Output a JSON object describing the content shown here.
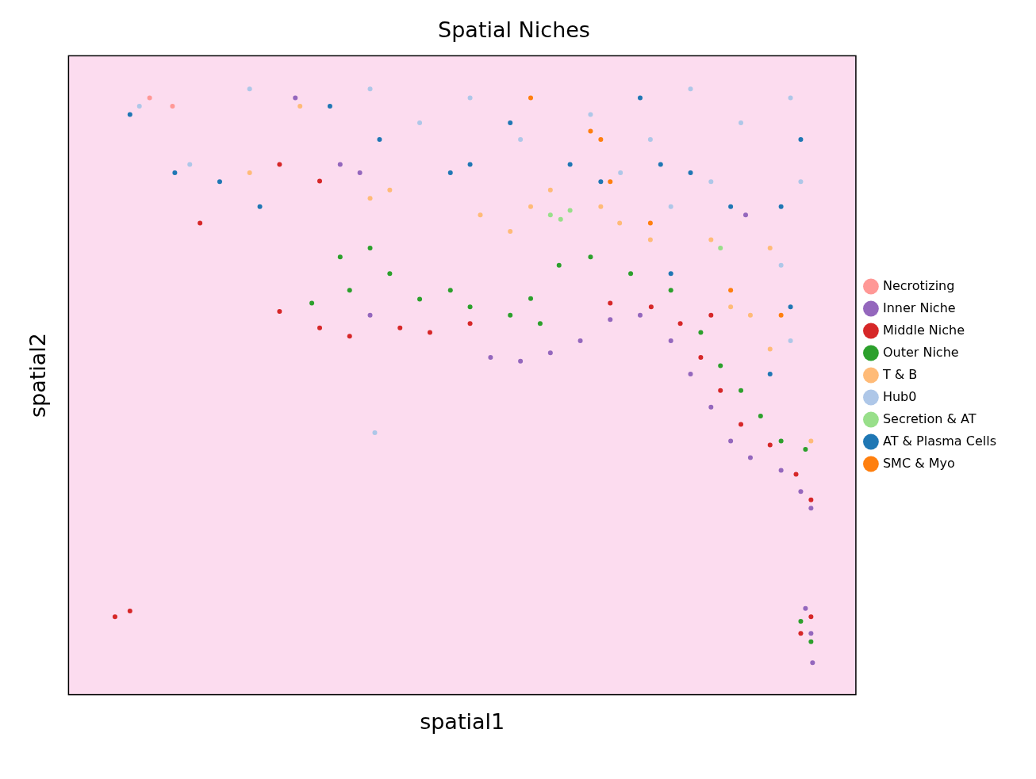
{
  "chart_data": {
    "type": "scatter",
    "title": "Spatial Niches",
    "x_label": "spatial1",
    "y_label": "spatial2",
    "xlim": [
      0,
      100
    ],
    "ylim": [
      0,
      100
    ],
    "xticks": [],
    "yticks": [],
    "tick_labels": false,
    "grid": false,
    "legend": "right",
    "marker": "circle",
    "series": [
      {
        "name": "Necrotizing",
        "color": "#ff9896",
        "values": [
          [
            10.3,
            93.4
          ],
          [
            13.2,
            92.1
          ]
        ]
      },
      {
        "name": "Inner Niche",
        "color": "#9467bd",
        "values": [
          [
            53.6,
            52.8
          ],
          [
            57.4,
            52.2
          ],
          [
            61.2,
            53.5
          ],
          [
            65.0,
            55.4
          ],
          [
            68.8,
            58.7
          ],
          [
            72.6,
            59.4
          ],
          [
            76.5,
            55.4
          ],
          [
            79.0,
            50.2
          ],
          [
            81.6,
            45.0
          ],
          [
            84.1,
            39.7
          ],
          [
            86.6,
            37.1
          ],
          [
            90.5,
            35.1
          ],
          [
            93.0,
            31.8
          ],
          [
            94.3,
            29.2
          ],
          [
            28.8,
            93.4
          ],
          [
            34.5,
            83.0
          ],
          [
            37.0,
            81.7
          ],
          [
            86.0,
            75.1
          ],
          [
            38.3,
            59.4
          ],
          [
            93.6,
            13.5
          ],
          [
            94.3,
            9.6
          ],
          [
            94.5,
            5.0
          ]
        ]
      },
      {
        "name": "Middle Niche",
        "color": "#d62728",
        "values": [
          [
            26.8,
            60.0
          ],
          [
            31.9,
            57.4
          ],
          [
            35.7,
            56.1
          ],
          [
            42.1,
            57.4
          ],
          [
            45.9,
            56.7
          ],
          [
            51.0,
            58.1
          ],
          [
            68.8,
            61.3
          ],
          [
            74.0,
            60.7
          ],
          [
            77.7,
            58.1
          ],
          [
            80.3,
            52.8
          ],
          [
            82.8,
            47.6
          ],
          [
            85.4,
            42.3
          ],
          [
            89.1,
            39.1
          ],
          [
            92.4,
            34.5
          ],
          [
            94.3,
            30.5
          ],
          [
            5.9,
            12.2
          ],
          [
            7.8,
            13.1
          ],
          [
            93.0,
            9.6
          ],
          [
            94.3,
            12.2
          ],
          [
            31.9,
            80.4
          ],
          [
            26.8,
            83.0
          ],
          [
            16.7,
            73.8
          ],
          [
            81.6,
            59.4
          ]
        ]
      },
      {
        "name": "Outer Niche",
        "color": "#2ca02c",
        "values": [
          [
            34.5,
            68.5
          ],
          [
            38.3,
            69.9
          ],
          [
            35.7,
            63.3
          ],
          [
            30.9,
            61.3
          ],
          [
            40.8,
            65.9
          ],
          [
            44.6,
            61.9
          ],
          [
            48.5,
            63.3
          ],
          [
            51.0,
            60.7
          ],
          [
            56.1,
            59.4
          ],
          [
            58.7,
            62.0
          ],
          [
            62.3,
            67.2
          ],
          [
            66.3,
            68.5
          ],
          [
            71.4,
            65.9
          ],
          [
            76.5,
            63.3
          ],
          [
            80.3,
            56.7
          ],
          [
            82.8,
            51.5
          ],
          [
            85.4,
            47.6
          ],
          [
            87.9,
            43.6
          ],
          [
            90.5,
            39.7
          ],
          [
            93.6,
            38.4
          ],
          [
            94.3,
            8.3
          ],
          [
            93.0,
            11.5
          ],
          [
            59.9,
            58.1
          ]
        ]
      },
      {
        "name": "T & B",
        "color": "#ffbb78",
        "values": [
          [
            38.3,
            77.7
          ],
          [
            40.8,
            79.0
          ],
          [
            52.3,
            75.1
          ],
          [
            56.1,
            72.5
          ],
          [
            58.7,
            76.4
          ],
          [
            67.6,
            76.4
          ],
          [
            70.0,
            73.8
          ],
          [
            61.2,
            79.0
          ],
          [
            23.0,
            81.7
          ],
          [
            29.4,
            92.1
          ],
          [
            84.1,
            60.7
          ],
          [
            86.6,
            59.4
          ],
          [
            89.1,
            54.1
          ],
          [
            94.3,
            39.7
          ],
          [
            81.6,
            71.2
          ],
          [
            89.1,
            69.9
          ],
          [
            73.9,
            71.2
          ]
        ]
      },
      {
        "name": "Hub0",
        "color": "#aec7e8",
        "values": [
          [
            9.0,
            92.1
          ],
          [
            15.4,
            83.0
          ],
          [
            23.0,
            94.8
          ],
          [
            38.3,
            94.8
          ],
          [
            44.6,
            89.5
          ],
          [
            51.0,
            93.4
          ],
          [
            57.4,
            86.9
          ],
          [
            66.3,
            90.8
          ],
          [
            73.9,
            86.9
          ],
          [
            79.0,
            94.8
          ],
          [
            85.4,
            89.5
          ],
          [
            91.7,
            93.4
          ],
          [
            93.0,
            80.3
          ],
          [
            90.5,
            67.2
          ],
          [
            81.6,
            80.3
          ],
          [
            70.1,
            81.7
          ],
          [
            76.5,
            76.4
          ],
          [
            91.7,
            55.4
          ],
          [
            38.9,
            41.0
          ]
        ]
      },
      {
        "name": "Secretion & AT",
        "color": "#98df8a",
        "values": [
          [
            62.5,
            74.4
          ],
          [
            63.7,
            75.8
          ],
          [
            61.2,
            75.1
          ],
          [
            82.8,
            69.9
          ]
        ]
      },
      {
        "name": "AT & Plasma Cells",
        "color": "#1f77b4",
        "values": [
          [
            7.8,
            90.8
          ],
          [
            13.5,
            81.7
          ],
          [
            19.2,
            80.3
          ],
          [
            24.3,
            76.4
          ],
          [
            33.2,
            92.1
          ],
          [
            39.5,
            86.9
          ],
          [
            48.5,
            81.7
          ],
          [
            51.0,
            83.0
          ],
          [
            56.1,
            89.5
          ],
          [
            63.7,
            83.0
          ],
          [
            72.6,
            93.4
          ],
          [
            75.2,
            83.0
          ],
          [
            79.0,
            81.7
          ],
          [
            84.1,
            76.4
          ],
          [
            90.5,
            76.4
          ],
          [
            91.7,
            60.7
          ],
          [
            89.1,
            50.2
          ],
          [
            93.0,
            86.9
          ],
          [
            67.6,
            80.3
          ],
          [
            76.5,
            65.9
          ]
        ]
      },
      {
        "name": "SMC & Myo",
        "color": "#ff7f0e",
        "values": [
          [
            58.7,
            93.4
          ],
          [
            67.6,
            86.9
          ],
          [
            68.8,
            80.3
          ],
          [
            66.3,
            88.2
          ],
          [
            84.1,
            63.3
          ],
          [
            90.5,
            59.4
          ],
          [
            73.9,
            73.8
          ]
        ]
      }
    ]
  }
}
